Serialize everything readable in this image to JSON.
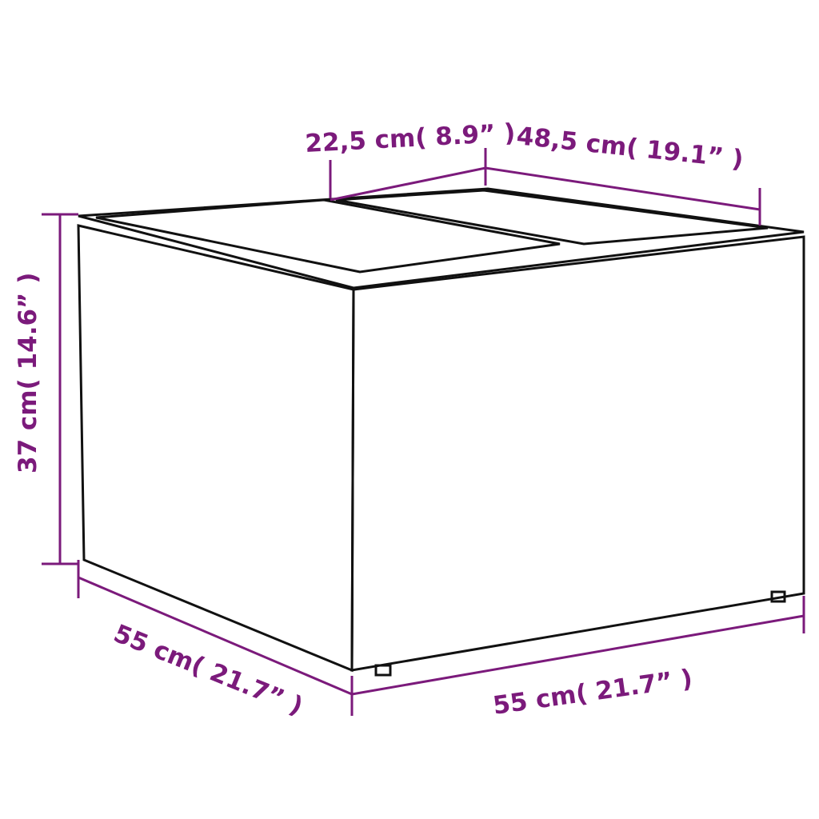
{
  "accent_color": "#7b1a7b",
  "dimensions": {
    "top_width": "22,5 cm( 8.9” )",
    "top_depth": "48,5 cm( 19.1” )",
    "height": "37 cm( 14.6” )",
    "depth": "55 cm( 21.7” )",
    "width": "55 cm( 21.7” )"
  }
}
